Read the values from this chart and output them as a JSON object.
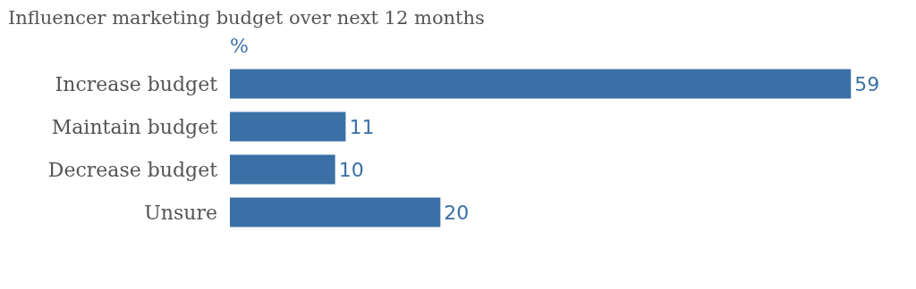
{
  "chart_data": {
    "type": "bar",
    "orientation": "horizontal",
    "title": "Influencer marketing budget over next 12 months",
    "xlabel": "%",
    "categories": [
      "Increase budget",
      "Maintain budget",
      "Decrease budget",
      "Unsure"
    ],
    "values": [
      59,
      11,
      10,
      20
    ],
    "color": "#3a70a6",
    "data_labels": true
  }
}
